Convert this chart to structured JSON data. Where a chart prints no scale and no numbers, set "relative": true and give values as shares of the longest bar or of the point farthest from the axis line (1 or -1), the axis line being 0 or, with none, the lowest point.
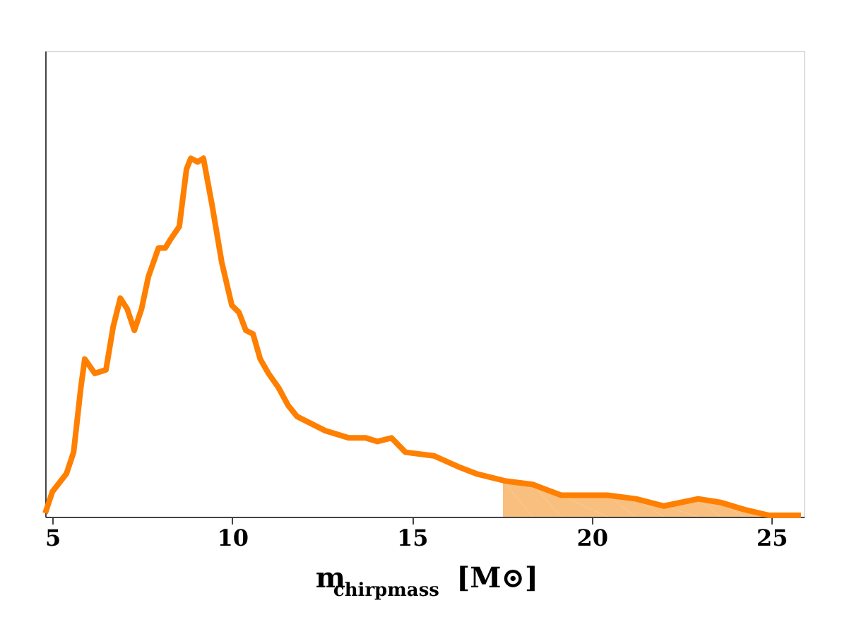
{
  "chart_data": {
    "type": "line",
    "relative": true,
    "xlabel": "m$_{chirpmass}$ [M⊙]",
    "xlim": [
      4.8,
      25.9
    ],
    "xticks": [
      5,
      10,
      15,
      20,
      25
    ],
    "grid": false,
    "series": [
      {
        "type": "area",
        "color": "#f8bf7f",
        "x": [
          17.53,
          18.36,
          19.15,
          20.44,
          21.23,
          22.01,
          22.96,
          23.58,
          24.25,
          24.92,
          25.82
        ],
        "values": [
          0.1,
          0.09,
          0.06,
          0.06,
          0.05,
          0.03,
          0.05,
          0.04,
          0.02,
          0.004,
          0.004
        ]
      },
      {
        "color": "#ff7f00",
        "x": [
          4.8,
          5.0,
          5.39,
          5.59,
          5.79,
          5.9,
          6.18,
          6.49,
          6.69,
          6.89,
          7.08,
          7.28,
          7.48,
          7.67,
          7.95,
          8.14,
          8.26,
          8.53,
          8.73,
          8.85,
          9.04,
          9.2,
          9.44,
          9.71,
          9.99,
          10.19,
          10.38,
          10.58,
          10.78,
          11.01,
          11.29,
          11.56,
          11.8,
          12.59,
          13.25,
          13.72,
          14.04,
          14.43,
          14.82,
          15.61,
          16.28,
          16.79,
          17.58,
          18.36,
          19.15,
          20.44,
          21.23,
          22.01,
          22.96,
          23.58,
          24.25,
          24.92,
          25.82
        ],
        "values": [
          0.01,
          0.07,
          0.12,
          0.18,
          0.36,
          0.44,
          0.4,
          0.41,
          0.53,
          0.61,
          0.58,
          0.52,
          0.58,
          0.67,
          0.75,
          0.75,
          0.77,
          0.81,
          0.97,
          1.0,
          0.99,
          1.0,
          0.87,
          0.71,
          0.59,
          0.57,
          0.52,
          0.51,
          0.44,
          0.4,
          0.36,
          0.31,
          0.28,
          0.24,
          0.22,
          0.22,
          0.21,
          0.22,
          0.18,
          0.17,
          0.14,
          0.12,
          0.1,
          0.09,
          0.06,
          0.06,
          0.05,
          0.03,
          0.05,
          0.04,
          0.02,
          0.004,
          0.004
        ]
      }
    ]
  }
}
